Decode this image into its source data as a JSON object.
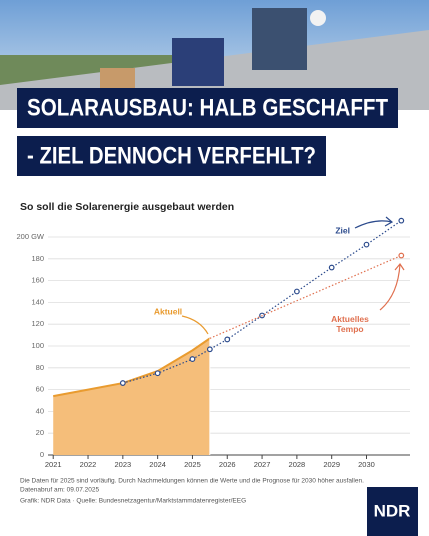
{
  "header": {
    "title_lines": [
      "SOLARAUSBAU: HALB GESCHAFFT",
      "- ZIEL DENNOCH VERFEHLT?"
    ]
  },
  "chart_data": {
    "type": "line",
    "title": "So soll die Solarenergie ausgebaut werden",
    "xlim": [
      2020.85,
      2031.25
    ],
    "ylim": [
      0,
      200
    ],
    "xticks": [
      2021,
      2022,
      2023,
      2024,
      2025,
      2026,
      2027,
      2028,
      2029,
      2030
    ],
    "yticks": [
      0,
      20,
      40,
      60,
      80,
      100,
      120,
      140,
      160,
      180,
      {
        "value": 200,
        "label": "200 GW"
      }
    ],
    "grid": true,
    "series": [
      {
        "name": "Aktuell",
        "style": "area",
        "color": "#e99b2f",
        "x": [
          2021,
          2022,
          2023,
          2024,
          2025,
          2025.5
        ],
        "values": [
          54,
          60,
          66,
          77,
          96,
          107
        ]
      },
      {
        "name": "Ziel",
        "style": "dotted-markers",
        "color": "#2b4a8c",
        "x": [
          2023,
          2024,
          2025,
          2025.5,
          2026,
          2027,
          2028,
          2029,
          2030,
          2031
        ],
        "values": [
          66,
          75,
          88,
          97,
          106,
          128,
          150,
          172,
          193,
          215
        ]
      },
      {
        "name": "Aktuelles Tempo",
        "style": "dotted-end",
        "color": "#e0704f",
        "x": [
          2025.5,
          2031
        ],
        "values": [
          107,
          183
        ]
      }
    ]
  },
  "footer": {
    "notes": [
      "Die Daten für 2025 sind vorläufig. Durch Nachmeldungen können die Werte und die Prognose für 2030 höher ausfallen.",
      "Datenabruf am: 09.07.2025",
      "Grafik: NDR Data  ·  Quelle: Bundesnetzagentur/Marktstammdatenregister/EEG"
    ],
    "logo": "NDR"
  }
}
